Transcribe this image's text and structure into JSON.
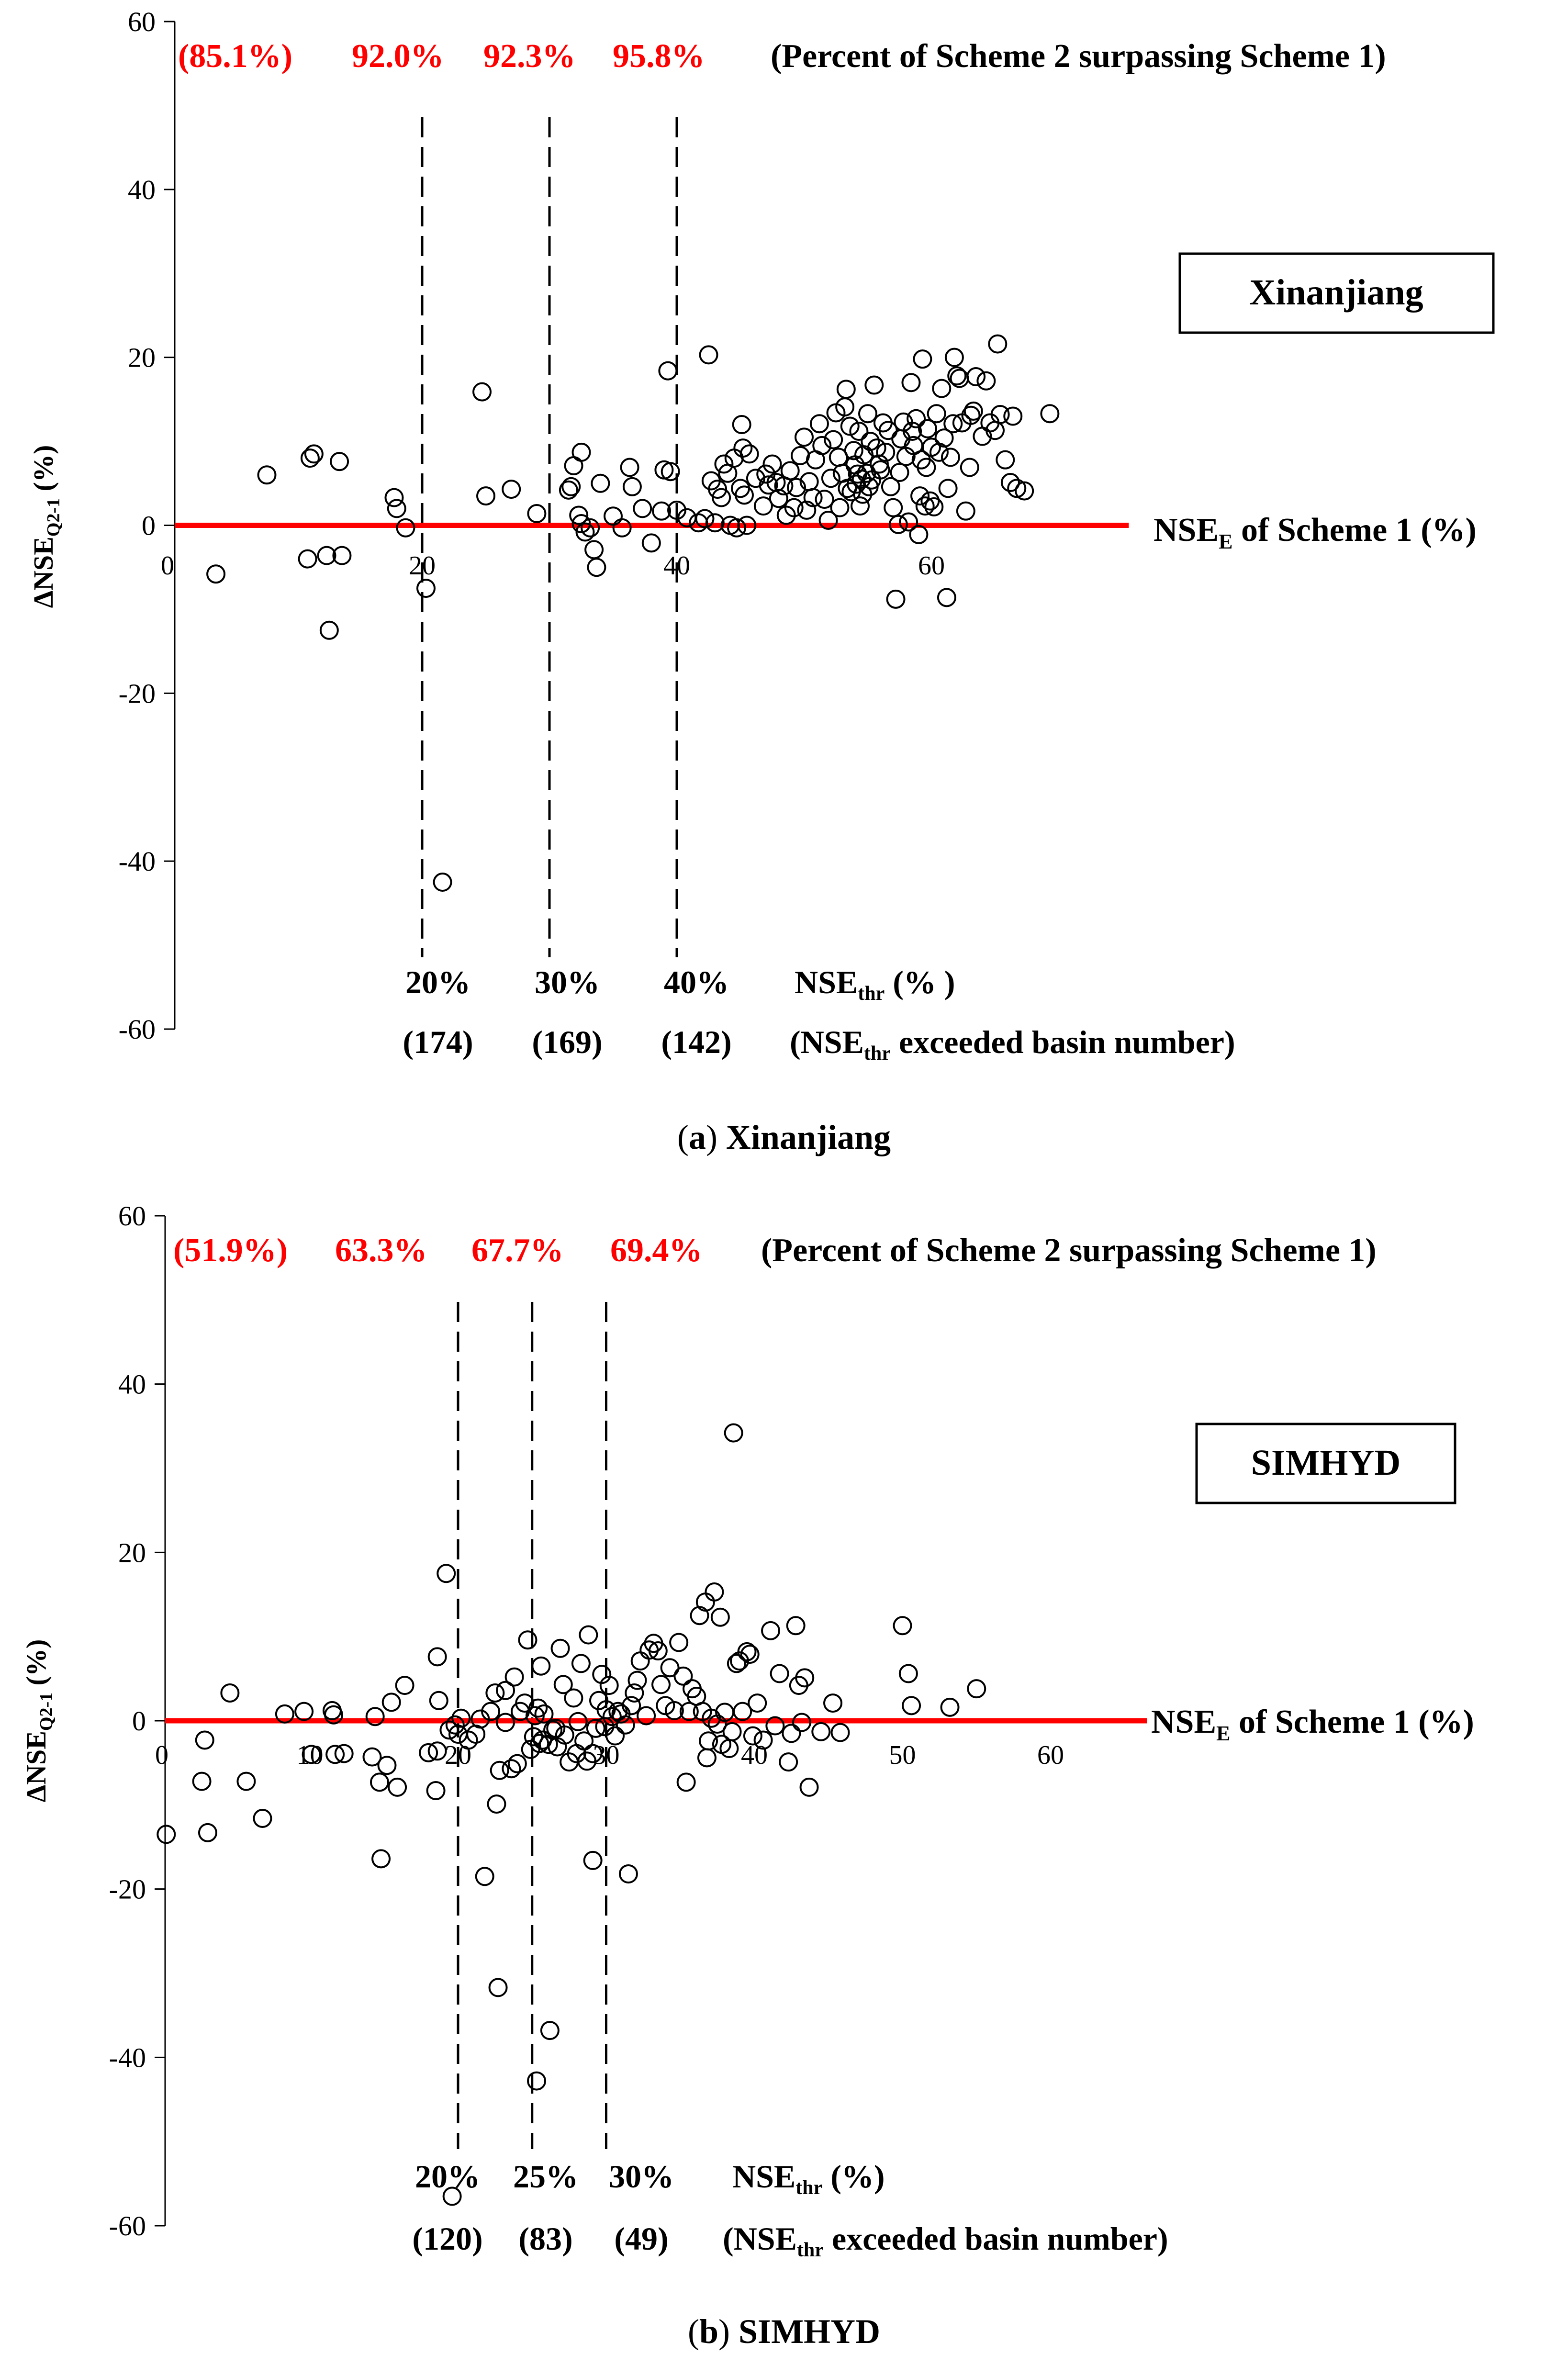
{
  "colors": {
    "zero_line": "#ff0000",
    "thr_red": "#ff0000",
    "ink": "#000000"
  },
  "chart_data": [
    {
      "type": "scatter",
      "caption_letter": "a",
      "caption_text": " Xinanjiang",
      "model_label": "Xinanjiang",
      "ylabel": "ΔNSE",
      "ylabel_sub": "Q2-1",
      "ylabel_unit": " (%)",
      "ylim": [
        -60,
        60
      ],
      "y_ticks": [
        "60",
        "40",
        "20",
        "0",
        "-20",
        "-40",
        "-60"
      ],
      "xlim": [
        0,
        70
      ],
      "x_ticks": [
        "0",
        "20",
        "40",
        "60"
      ],
      "x_axis_label_main": "NSE",
      "x_axis_label_sub": "E",
      "x_axis_label_rest": " of Scheme 1 (%)",
      "zero_line": {
        "y": 0,
        "x_end": 75.5
      },
      "thresholds": [
        20,
        30,
        40
      ],
      "threshold_labels": [
        "20%",
        "30%",
        "40%"
      ],
      "basin_counts": [
        "(174)",
        "(169)",
        "(142)"
      ],
      "thr_axis_label_main": "NSE",
      "thr_axis_label_sub": "thr",
      "thr_axis_label_rest": " (% )",
      "basin_note_open": "(NSE",
      "basin_note_sub": "thr",
      "basin_note_rest": " exceeded basin number)",
      "percent_labels": [
        "(85.1%)",
        "92.0%",
        "92.3%",
        "95.8%"
      ],
      "percent_note": "(Percent of Scheme 2 surpassing Scheme 1)",
      "points": [
        [
          3.8,
          -5.8
        ],
        [
          7.8,
          6
        ],
        [
          11,
          -4
        ],
        [
          11.2,
          8
        ],
        [
          11.5,
          8.5
        ],
        [
          12.5,
          -3.6
        ],
        [
          12.7,
          -12.5
        ],
        [
          13.5,
          7.6
        ],
        [
          13.7,
          -3.6
        ],
        [
          17.8,
          3.3
        ],
        [
          18,
          2
        ],
        [
          18.7,
          -0.3
        ],
        [
          20.3,
          -7.5
        ],
        [
          21.6,
          -42.5
        ],
        [
          24.7,
          15.9
        ],
        [
          25,
          3.5
        ],
        [
          27,
          4.3
        ],
        [
          29,
          1.4
        ],
        [
          31.5,
          4.2
        ],
        [
          31.7,
          4.6
        ],
        [
          31.9,
          7.1
        ],
        [
          32.5,
          8.7
        ],
        [
          32.3,
          1.2
        ],
        [
          32.5,
          0.2
        ],
        [
          32.8,
          -0.8
        ],
        [
          33.2,
          -0.3
        ],
        [
          33.5,
          -2.9
        ],
        [
          33.7,
          -5
        ],
        [
          34,
          5
        ],
        [
          35,
          1.1
        ],
        [
          35.7,
          -0.3
        ],
        [
          36.3,
          6.9
        ],
        [
          36.5,
          4.6
        ],
        [
          37.3,
          2
        ],
        [
          38,
          -2.1
        ],
        [
          38.8,
          1.7
        ],
        [
          39,
          6.6
        ],
        [
          39.3,
          18.4
        ],
        [
          39.5,
          6.4
        ],
        [
          40,
          1.8
        ],
        [
          40.8,
          0.9
        ],
        [
          41.7,
          0.3
        ],
        [
          42.2,
          0.8
        ],
        [
          42.5,
          20.3
        ],
        [
          42.7,
          5.3
        ],
        [
          43,
          0.3
        ],
        [
          43.2,
          4.3
        ],
        [
          43.5,
          3.3
        ],
        [
          43.7,
          7.3
        ],
        [
          44,
          6.2
        ],
        [
          44.2,
          0
        ],
        [
          44.5,
          8
        ],
        [
          44.7,
          -0.3
        ],
        [
          45,
          4.4
        ],
        [
          45.1,
          12
        ],
        [
          45.2,
          9.2
        ],
        [
          45.3,
          3.6
        ],
        [
          45.5,
          0
        ],
        [
          45.7,
          8.5
        ],
        [
          46.2,
          5.6
        ],
        [
          46.8,
          2.3
        ],
        [
          47,
          6.1
        ],
        [
          47.2,
          4.8
        ],
        [
          47.5,
          7.3
        ],
        [
          47.8,
          5.1
        ],
        [
          48,
          3.2
        ],
        [
          48.4,
          4.7
        ],
        [
          48.6,
          1.2
        ],
        [
          48.9,
          6.5
        ],
        [
          49.2,
          2.1
        ],
        [
          49.4,
          4.5
        ],
        [
          49.7,
          8.3
        ],
        [
          50,
          10.5
        ],
        [
          50.2,
          1.8
        ],
        [
          50.4,
          5.2
        ],
        [
          50.7,
          3.3
        ],
        [
          50.9,
          7.8
        ],
        [
          51.2,
          12.1
        ],
        [
          51.4,
          9.5
        ],
        [
          51.6,
          3.1
        ],
        [
          51.9,
          0.6
        ],
        [
          52.1,
          5.6
        ],
        [
          52.3,
          10.2
        ],
        [
          52.5,
          13.4
        ],
        [
          52.7,
          8.1
        ],
        [
          52.8,
          2.1
        ],
        [
          53,
          6.2
        ],
        [
          53.2,
          14.1
        ],
        [
          53.3,
          16.2
        ],
        [
          53.4,
          4.4
        ],
        [
          53.6,
          11.8
        ],
        [
          53.7,
          4
        ],
        [
          53.9,
          8.9
        ],
        [
          54,
          7.2
        ],
        [
          54.1,
          4.9
        ],
        [
          54.2,
          6.1
        ],
        [
          54.3,
          11.2
        ],
        [
          54.4,
          2.3
        ],
        [
          54.5,
          5.5
        ],
        [
          54.6,
          3.7
        ],
        [
          54.7,
          8.4
        ],
        [
          54.9,
          6.2
        ],
        [
          55,
          13.3
        ],
        [
          55.1,
          4.6
        ],
        [
          55.2,
          10
        ],
        [
          55.3,
          5.4
        ],
        [
          55.5,
          16.7
        ],
        [
          55.7,
          9.2
        ],
        [
          55.9,
          7.3
        ],
        [
          56,
          6.6
        ],
        [
          56.2,
          12.2
        ],
        [
          56.4,
          8.7
        ],
        [
          56.6,
          11.3
        ],
        [
          56.8,
          4.6
        ],
        [
          57,
          2.1
        ],
        [
          57.2,
          -8.8
        ],
        [
          57.4,
          0.1
        ],
        [
          57.5,
          6.3
        ],
        [
          57.6,
          10.3
        ],
        [
          57.8,
          12.3
        ],
        [
          58,
          8.2
        ],
        [
          58.2,
          0.4
        ],
        [
          58.4,
          17
        ],
        [
          58.5,
          11.2
        ],
        [
          58.6,
          9.5
        ],
        [
          58.8,
          12.7
        ],
        [
          59,
          -1.1
        ],
        [
          59.1,
          3.5
        ],
        [
          59.2,
          7.8
        ],
        [
          59.3,
          19.8
        ],
        [
          59.5,
          2.3
        ],
        [
          59.6,
          6.9
        ],
        [
          59.7,
          11.5
        ],
        [
          59.9,
          2.9
        ],
        [
          60,
          9.3
        ],
        [
          60.2,
          2.2
        ],
        [
          60.4,
          13.3
        ],
        [
          60.6,
          8.7
        ],
        [
          60.8,
          16.3
        ],
        [
          61,
          10.4
        ],
        [
          61.2,
          -8.6
        ],
        [
          61.3,
          4.4
        ],
        [
          61.5,
          8.1
        ],
        [
          61.7,
          12.1
        ],
        [
          61.8,
          20
        ],
        [
          62,
          17.8
        ],
        [
          62.2,
          17.5
        ],
        [
          62.4,
          12.2
        ],
        [
          62.7,
          1.7
        ],
        [
          63,
          6.9
        ],
        [
          63.1,
          13.1
        ],
        [
          63.3,
          13.6
        ],
        [
          63.5,
          17.7
        ],
        [
          64,
          10.6
        ],
        [
          64.3,
          17.2
        ],
        [
          64.6,
          12.2
        ],
        [
          65,
          11.3
        ],
        [
          65.2,
          21.6
        ],
        [
          65.4,
          13.2
        ],
        [
          65.8,
          7.8
        ],
        [
          66.2,
          5.1
        ],
        [
          66.4,
          13
        ],
        [
          66.7,
          4.4
        ],
        [
          67.3,
          4.1
        ],
        [
          69.3,
          13.3
        ]
      ]
    },
    {
      "type": "scatter",
      "caption_letter": "b",
      "caption_text": " SIMHYD",
      "model_label": "SIMHYD",
      "ylabel": "ΔNSE",
      "ylabel_sub": "Q2-1",
      "ylabel_unit": " (%)",
      "ylim": [
        -60,
        60
      ],
      "y_ticks": [
        "60",
        "40",
        "20",
        "0",
        "-20",
        "-40",
        "-60"
      ],
      "xlim": [
        0,
        60
      ],
      "x_ticks": [
        "0",
        "10",
        "20",
        "30",
        "40",
        "50",
        "60"
      ],
      "x_axis_label_main": "NSE",
      "x_axis_label_sub": "E",
      "x_axis_label_rest": " of Scheme 1 (%)",
      "zero_line": {
        "y": 0,
        "x_end": 66.5
      },
      "thresholds": [
        20,
        25,
        30
      ],
      "threshold_labels": [
        "20%",
        "25%",
        "30%"
      ],
      "basin_counts": [
        "(120)",
        "(83)",
        "(49)"
      ],
      "thr_axis_label_main": "NSE",
      "thr_axis_label_sub": "thr",
      "thr_axis_label_rest": " (%)",
      "basin_note_open": "(NSE",
      "basin_note_sub": "thr",
      "basin_note_rest": " exceeded basin number)",
      "percent_labels": [
        "(51.9%)",
        "63.3%",
        "67.7%",
        "69.4%"
      ],
      "percent_note": "(Percent of Scheme 2 surpassing Scheme 1)",
      "points": [
        [
          0.3,
          -13.5
        ],
        [
          2.7,
          -7.2
        ],
        [
          2.9,
          -2.3
        ],
        [
          3.1,
          -13.3
        ],
        [
          4.6,
          3.3
        ],
        [
          5.7,
          -7.2
        ],
        [
          6.8,
          -11.6
        ],
        [
          8.3,
          0.8
        ],
        [
          9.6,
          1.1
        ],
        [
          10.1,
          -4
        ],
        [
          11.5,
          1.2
        ],
        [
          11.6,
          0.7
        ],
        [
          11.7,
          -4
        ],
        [
          12.3,
          -3.9
        ],
        [
          14.2,
          -4.3
        ],
        [
          14.4,
          0.5
        ],
        [
          14.7,
          -7.3
        ],
        [
          14.8,
          -16.4
        ],
        [
          15.2,
          -5.3
        ],
        [
          15.5,
          2.2
        ],
        [
          15.9,
          -7.9
        ],
        [
          16.4,
          4.2
        ],
        [
          18,
          -3.8
        ],
        [
          18.5,
          -8.3
        ],
        [
          18.6,
          -3.6
        ],
        [
          18.6,
          7.6
        ],
        [
          18.7,
          2.4
        ],
        [
          19.2,
          17.5
        ],
        [
          19.4,
          -1.1
        ],
        [
          19.6,
          -56.5
        ],
        [
          19.8,
          -0.5
        ],
        [
          20,
          -1.6
        ],
        [
          20.2,
          0.3
        ],
        [
          20.7,
          -2.3
        ],
        [
          21.2,
          -1.6
        ],
        [
          21.5,
          0.2
        ],
        [
          21.8,
          -18.5
        ],
        [
          22.2,
          1.1
        ],
        [
          22.5,
          3.3
        ],
        [
          22.6,
          -9.9
        ],
        [
          22.7,
          -31.7
        ],
        [
          22.8,
          -5.9
        ],
        [
          23.2,
          -0.2
        ],
        [
          23.2,
          3.6
        ],
        [
          23.6,
          -5.7
        ],
        [
          23.8,
          5.2
        ],
        [
          24,
          -5.1
        ],
        [
          24.2,
          1.1
        ],
        [
          24.5,
          2.1
        ],
        [
          24.7,
          9.6
        ],
        [
          24.9,
          -3.4
        ],
        [
          25.1,
          -1.9
        ],
        [
          25.2,
          0.6
        ],
        [
          25.3,
          -42.8
        ],
        [
          25.4,
          1.5
        ],
        [
          25.5,
          -2.7
        ],
        [
          25.6,
          6.5
        ],
        [
          25.7,
          -2.3
        ],
        [
          25.8,
          0.8
        ],
        [
          26.1,
          -2.8
        ],
        [
          26.2,
          -36.8
        ],
        [
          26.4,
          -1.1
        ],
        [
          26.6,
          -0.9
        ],
        [
          26.7,
          -3.1
        ],
        [
          26.9,
          8.6
        ],
        [
          27.1,
          4.3
        ],
        [
          27.2,
          -1.7
        ],
        [
          27.5,
          -4.9
        ],
        [
          27.8,
          2.7
        ],
        [
          28,
          -3.9
        ],
        [
          28.1,
          -0.1
        ],
        [
          28.3,
          6.8
        ],
        [
          28.5,
          -2.4
        ],
        [
          28.7,
          -4.8
        ],
        [
          28.8,
          10.2
        ],
        [
          29.1,
          -3.9
        ],
        [
          29.1,
          -16.6
        ],
        [
          29.3,
          -0.9
        ],
        [
          29.5,
          2.4
        ],
        [
          29.7,
          5.5
        ],
        [
          29.9,
          -0.7
        ],
        [
          30,
          1.3
        ],
        [
          30.2,
          4.2
        ],
        [
          30.4,
          0.5
        ],
        [
          30.6,
          -1.8
        ],
        [
          30.8,
          1.1
        ],
        [
          31,
          0.8
        ],
        [
          31.3,
          -0.5
        ],
        [
          31.5,
          -18.2
        ],
        [
          31.7,
          1.8
        ],
        [
          31.9,
          3.3
        ],
        [
          32.1,
          4.8
        ],
        [
          32.3,
          7.1
        ],
        [
          32.7,
          0.6
        ],
        [
          32.9,
          8.4
        ],
        [
          33.2,
          9.2
        ],
        [
          33.5,
          8.3
        ],
        [
          33.7,
          4.3
        ],
        [
          34,
          1.8
        ],
        [
          34.3,
          6.3
        ],
        [
          34.6,
          1.2
        ],
        [
          34.9,
          9.3
        ],
        [
          35.2,
          5.3
        ],
        [
          35.4,
          -7.3
        ],
        [
          35.6,
          1.1
        ],
        [
          35.8,
          3.8
        ],
        [
          36.1,
          2.9
        ],
        [
          36.3,
          12.5
        ],
        [
          36.5,
          1.1
        ],
        [
          36.7,
          14.1
        ],
        [
          36.8,
          -4.4
        ],
        [
          36.9,
          -2.4
        ],
        [
          37.1,
          0.3
        ],
        [
          37.3,
          15.3
        ],
        [
          37.5,
          -0.4
        ],
        [
          37.7,
          12.3
        ],
        [
          37.8,
          -2.8
        ],
        [
          38,
          1
        ],
        [
          38.3,
          -3.3
        ],
        [
          38.5,
          -1.3
        ],
        [
          38.6,
          34.2
        ],
        [
          38.8,
          6.8
        ],
        [
          39,
          7.1
        ],
        [
          39.2,
          1.1
        ],
        [
          39.5,
          8.2
        ],
        [
          39.7,
          7.9
        ],
        [
          39.9,
          -1.8
        ],
        [
          40.2,
          2.1
        ],
        [
          40.6,
          -2.3
        ],
        [
          41.1,
          10.7
        ],
        [
          41.4,
          -0.6
        ],
        [
          41.7,
          5.6
        ],
        [
          42.3,
          -4.9
        ],
        [
          42.5,
          -1.5
        ],
        [
          42.8,
          11.3
        ],
        [
          43,
          4.2
        ],
        [
          43.2,
          -0.2
        ],
        [
          43.4,
          5.1
        ],
        [
          43.7,
          -7.9
        ],
        [
          44.5,
          -1.3
        ],
        [
          45.3,
          2.1
        ],
        [
          45.8,
          -1.4
        ],
        [
          50,
          11.3
        ],
        [
          50.4,
          5.6
        ],
        [
          50.6,
          1.8
        ],
        [
          53.2,
          1.6
        ],
        [
          55,
          3.8
        ]
      ]
    }
  ]
}
